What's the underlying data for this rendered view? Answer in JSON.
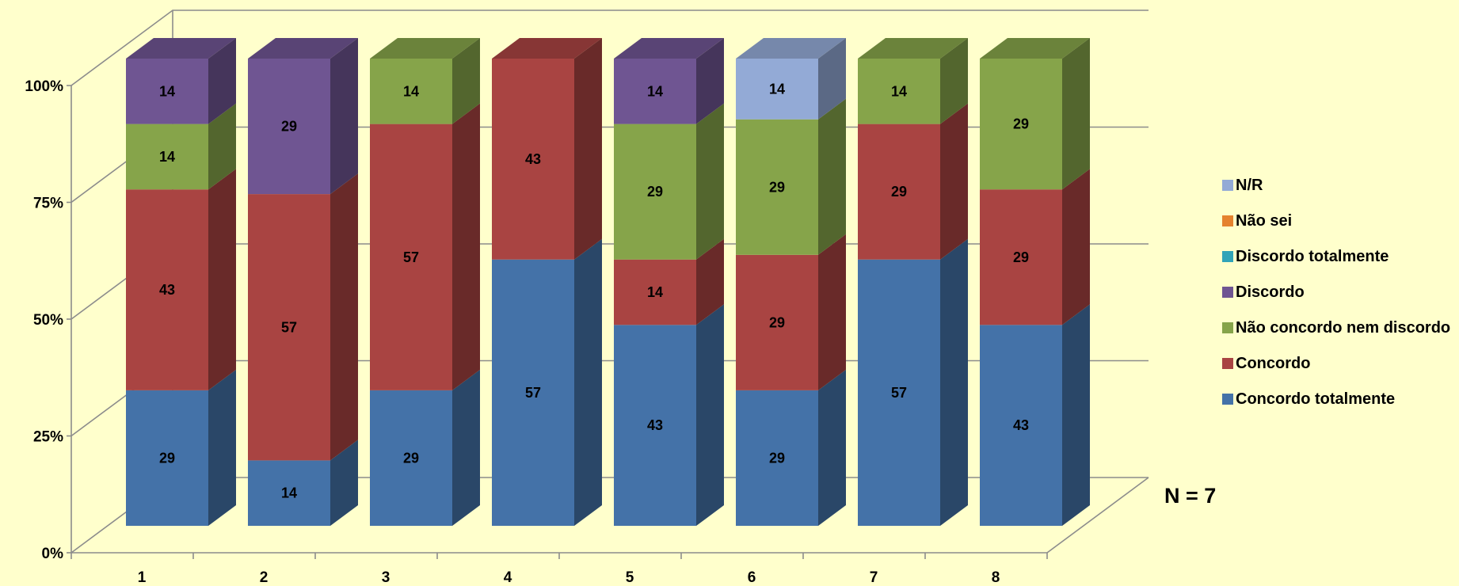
{
  "chart_data": {
    "type": "bar",
    "stacked": true,
    "percent_stacked": true,
    "three_d": true,
    "categories": [
      "1",
      "2",
      "3",
      "4",
      "5",
      "6",
      "7",
      "8"
    ],
    "y_ticks": [
      "0%",
      "25%",
      "50%",
      "75%",
      "100%"
    ],
    "ylim": [
      0,
      100
    ],
    "series": [
      {
        "name": "Concordo totalmente",
        "color": "#4472A8",
        "values": [
          29,
          14,
          29,
          57,
          43,
          29,
          57,
          43
        ]
      },
      {
        "name": "Concordo",
        "color": "#A94442",
        "values": [
          43,
          57,
          57,
          43,
          14,
          29,
          29,
          29
        ]
      },
      {
        "name": "Não concordo nem discordo",
        "color": "#86A44A",
        "values": [
          14,
          null,
          14,
          null,
          29,
          29,
          14,
          29
        ]
      },
      {
        "name": "Discordo",
        "color": "#6F5592",
        "values": [
          14,
          29,
          null,
          null,
          14,
          null,
          null,
          null
        ]
      },
      {
        "name": "Discordo totalmente",
        "color": "#31A4B8",
        "values": [
          null,
          null,
          null,
          null,
          null,
          null,
          null,
          null
        ]
      },
      {
        "name": "Não sei",
        "color": "#E5822F",
        "values": [
          null,
          null,
          null,
          null,
          null,
          null,
          null,
          null
        ]
      },
      {
        "name": "N/R",
        "color": "#93AAD6",
        "values": [
          null,
          null,
          null,
          null,
          null,
          14,
          null,
          null
        ]
      }
    ],
    "legend_position": "right",
    "annotation": "N = 7",
    "grid": true
  }
}
